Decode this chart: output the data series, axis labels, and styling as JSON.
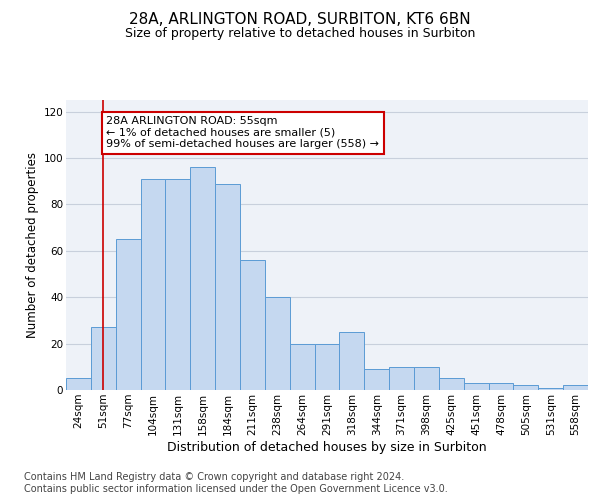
{
  "title1": "28A, ARLINGTON ROAD, SURBITON, KT6 6BN",
  "title2": "Size of property relative to detached houses in Surbiton",
  "xlabel": "Distribution of detached houses by size in Surbiton",
  "ylabel": "Number of detached properties",
  "categories": [
    "24sqm",
    "51sqm",
    "77sqm",
    "104sqm",
    "131sqm",
    "158sqm",
    "184sqm",
    "211sqm",
    "238sqm",
    "264sqm",
    "291sqm",
    "318sqm",
    "344sqm",
    "371sqm",
    "398sqm",
    "425sqm",
    "451sqm",
    "478sqm",
    "505sqm",
    "531sqm",
    "558sqm"
  ],
  "values": [
    5,
    27,
    65,
    91,
    91,
    96,
    89,
    56,
    40,
    20,
    20,
    25,
    9,
    10,
    10,
    5,
    3,
    3,
    2,
    1,
    2
  ],
  "bar_color": "#c5d8f0",
  "bar_edgecolor": "#5b9bd5",
  "vline_x": 1,
  "vline_color": "#cc0000",
  "annotation_text": "28A ARLINGTON ROAD: 55sqm\n← 1% of detached houses are smaller (5)\n99% of semi-detached houses are larger (558) →",
  "annotation_box_edgecolor": "#cc0000",
  "annotation_box_facecolor": "white",
  "ylim": [
    0,
    125
  ],
  "yticks": [
    0,
    20,
    40,
    60,
    80,
    100,
    120
  ],
  "grid_color": "#c8d0dc",
  "background_color": "#eef2f8",
  "footer_line1": "Contains HM Land Registry data © Crown copyright and database right 2024.",
  "footer_line2": "Contains public sector information licensed under the Open Government Licence v3.0.",
  "title1_fontsize": 11,
  "title2_fontsize": 9,
  "xlabel_fontsize": 9,
  "ylabel_fontsize": 8.5,
  "tick_fontsize": 7.5,
  "annotation_fontsize": 8,
  "footer_fontsize": 7
}
